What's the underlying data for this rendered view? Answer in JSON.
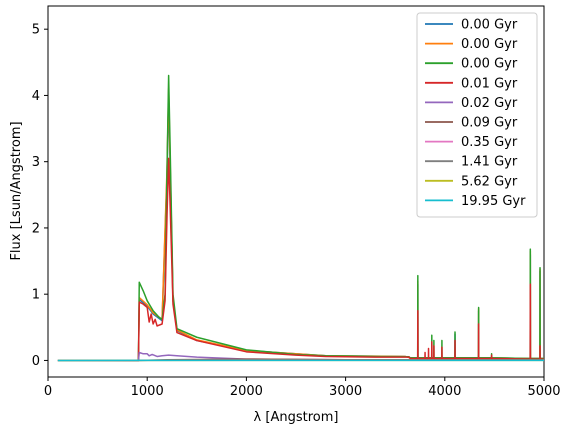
{
  "chart_data": {
    "type": "line",
    "xlabel": "λ [Angstrom]",
    "ylabel": "Flux [Lsun/Angstrom]",
    "xlim": [
      0,
      5000
    ],
    "ylim": [
      -0.25,
      5.35
    ],
    "xticks": [
      0,
      1000,
      2000,
      3000,
      4000,
      5000
    ],
    "yticks": [
      0,
      1,
      2,
      3,
      4,
      5
    ],
    "grid": false,
    "legend_position": "top-right",
    "series": [
      {
        "name": "0.00 Gyr",
        "color": "#1f77b4",
        "points": [
          [
            100,
            0
          ],
          [
            912,
            0
          ],
          [
            920,
            0.92
          ],
          [
            1000,
            0.82
          ],
          [
            1060,
            0.7
          ],
          [
            1150,
            0.6
          ],
          [
            1200,
            2.8
          ],
          [
            1216,
            4.0
          ],
          [
            1230,
            3.0
          ],
          [
            1260,
            0.9
          ],
          [
            1300,
            0.45
          ],
          [
            1500,
            0.3
          ],
          [
            2000,
            0.15
          ],
          [
            2800,
            0.07
          ],
          [
            3600,
            0.06
          ],
          [
            3650,
            0.04
          ],
          [
            3727,
            0.04
          ],
          [
            3728,
            1.15
          ],
          [
            3729,
            0.04
          ],
          [
            4102,
            0.04
          ],
          [
            4103,
            0.4
          ],
          [
            4104,
            0.04
          ],
          [
            4340,
            0.04
          ],
          [
            4341,
            0.75
          ],
          [
            4342,
            0.04
          ],
          [
            4861,
            0.03
          ],
          [
            4862,
            1.6
          ],
          [
            4863,
            0.03
          ],
          [
            4959,
            0.03
          ],
          [
            4960,
            1.35
          ],
          [
            4961,
            0.03
          ],
          [
            5000,
            0.03
          ]
        ]
      },
      {
        "name": "0.00 Gyr",
        "color": "#ff7f0e",
        "points": [
          [
            100,
            0
          ],
          [
            912,
            0
          ],
          [
            920,
            0.95
          ],
          [
            1000,
            0.84
          ],
          [
            1060,
            0.72
          ],
          [
            1150,
            0.62
          ],
          [
            1200,
            2.9
          ],
          [
            1216,
            4.1
          ],
          [
            1230,
            3.1
          ],
          [
            1260,
            0.9
          ],
          [
            1300,
            0.46
          ],
          [
            1500,
            0.31
          ],
          [
            2000,
            0.15
          ],
          [
            2800,
            0.07
          ],
          [
            3600,
            0.06
          ],
          [
            3650,
            0.04
          ],
          [
            3727,
            0.04
          ],
          [
            3728,
            1.2
          ],
          [
            3729,
            0.04
          ],
          [
            4340,
            0.04
          ],
          [
            4341,
            0.78
          ],
          [
            4342,
            0.04
          ],
          [
            4861,
            0.03
          ],
          [
            4862,
            1.65
          ],
          [
            4863,
            0.03
          ],
          [
            4959,
            0.03
          ],
          [
            4960,
            1.38
          ],
          [
            4961,
            0.03
          ],
          [
            5000,
            0.03
          ]
        ]
      },
      {
        "name": "0.00 Gyr",
        "color": "#2ca02c",
        "points": [
          [
            100,
            0
          ],
          [
            912,
            0
          ],
          [
            920,
            1.18
          ],
          [
            960,
            1.05
          ],
          [
            1000,
            0.9
          ],
          [
            1060,
            0.75
          ],
          [
            1120,
            0.65
          ],
          [
            1150,
            0.62
          ],
          [
            1180,
            1.0
          ],
          [
            1200,
            2.9
          ],
          [
            1216,
            4.3
          ],
          [
            1230,
            3.3
          ],
          [
            1260,
            1.0
          ],
          [
            1300,
            0.48
          ],
          [
            1500,
            0.35
          ],
          [
            2000,
            0.16
          ],
          [
            2500,
            0.09
          ],
          [
            2800,
            0.07
          ],
          [
            3300,
            0.06
          ],
          [
            3640,
            0.055
          ],
          [
            3650,
            0.04
          ],
          [
            3727,
            0.04
          ],
          [
            3728,
            1.28
          ],
          [
            3729,
            0.04
          ],
          [
            3868,
            0.04
          ],
          [
            3869,
            0.38
          ],
          [
            3870,
            0.04
          ],
          [
            3889,
            0.04
          ],
          [
            3890,
            0.3
          ],
          [
            3891,
            0.04
          ],
          [
            3970,
            0.04
          ],
          [
            3971,
            0.3
          ],
          [
            3972,
            0.04
          ],
          [
            4102,
            0.04
          ],
          [
            4103,
            0.43
          ],
          [
            4104,
            0.04
          ],
          [
            4340,
            0.04
          ],
          [
            4341,
            0.8
          ],
          [
            4342,
            0.04
          ],
          [
            4471,
            0.04
          ],
          [
            4472,
            0.1
          ],
          [
            4473,
            0.04
          ],
          [
            4861,
            0.03
          ],
          [
            4862,
            1.68
          ],
          [
            4863,
            0.03
          ],
          [
            4959,
            0.03
          ],
          [
            4960,
            1.4
          ],
          [
            4961,
            0.03
          ],
          [
            5000,
            0.03
          ]
        ]
      },
      {
        "name": "0.01 Gyr",
        "color": "#d62728",
        "points": [
          [
            100,
            0
          ],
          [
            912,
            0
          ],
          [
            920,
            0.88
          ],
          [
            960,
            0.85
          ],
          [
            1000,
            0.8
          ],
          [
            1020,
            0.58
          ],
          [
            1040,
            0.7
          ],
          [
            1060,
            0.55
          ],
          [
            1080,
            0.62
          ],
          [
            1100,
            0.52
          ],
          [
            1150,
            0.55
          ],
          [
            1180,
            0.9
          ],
          [
            1200,
            2.2
          ],
          [
            1216,
            3.05
          ],
          [
            1230,
            2.4
          ],
          [
            1260,
            0.85
          ],
          [
            1300,
            0.42
          ],
          [
            1500,
            0.3
          ],
          [
            2000,
            0.13
          ],
          [
            2500,
            0.08
          ],
          [
            2800,
            0.06
          ],
          [
            3300,
            0.05
          ],
          [
            3640,
            0.05
          ],
          [
            3650,
            0.03
          ],
          [
            3727,
            0.03
          ],
          [
            3728,
            0.75
          ],
          [
            3729,
            0.03
          ],
          [
            3800,
            0.03
          ],
          [
            3801,
            0.12
          ],
          [
            3802,
            0.03
          ],
          [
            3835,
            0.03
          ],
          [
            3836,
            0.18
          ],
          [
            3837,
            0.03
          ],
          [
            3868,
            0.03
          ],
          [
            3869,
            0.28
          ],
          [
            3870,
            0.03
          ],
          [
            3889,
            0.03
          ],
          [
            3890,
            0.22
          ],
          [
            3891,
            0.03
          ],
          [
            3970,
            0.03
          ],
          [
            3971,
            0.2
          ],
          [
            3972,
            0.03
          ],
          [
            4102,
            0.03
          ],
          [
            4103,
            0.3
          ],
          [
            4104,
            0.03
          ],
          [
            4340,
            0.03
          ],
          [
            4341,
            0.55
          ],
          [
            4342,
            0.03
          ],
          [
            4471,
            0.03
          ],
          [
            4472,
            0.08
          ],
          [
            4473,
            0.03
          ],
          [
            4861,
            0.02
          ],
          [
            4862,
            1.15
          ],
          [
            4863,
            0.02
          ],
          [
            4959,
            0.02
          ],
          [
            4960,
            0.22
          ],
          [
            4961,
            0.02
          ],
          [
            5000,
            0.02
          ]
        ]
      },
      {
        "name": "0.02 Gyr",
        "color": "#9467bd",
        "points": [
          [
            100,
            0
          ],
          [
            912,
            0
          ],
          [
            920,
            0.12
          ],
          [
            960,
            0.1
          ],
          [
            1000,
            0.1
          ],
          [
            1020,
            0.07
          ],
          [
            1050,
            0.09
          ],
          [
            1100,
            0.06
          ],
          [
            1150,
            0.07
          ],
          [
            1216,
            0.08
          ],
          [
            1300,
            0.07
          ],
          [
            1500,
            0.05
          ],
          [
            2000,
            0.02
          ],
          [
            3000,
            0.01
          ],
          [
            5000,
            0.01
          ]
        ]
      },
      {
        "name": "0.09 Gyr",
        "color": "#8c564b",
        "points": [
          [
            100,
            0
          ],
          [
            912,
            0
          ],
          [
            1200,
            0.01
          ],
          [
            2000,
            0.02
          ],
          [
            3000,
            0.01
          ],
          [
            5000,
            0.01
          ]
        ]
      },
      {
        "name": "0.35 Gyr",
        "color": "#e377c2",
        "points": [
          [
            100,
            0
          ],
          [
            1500,
            0.005
          ],
          [
            3000,
            0.005
          ],
          [
            5000,
            0.005
          ]
        ]
      },
      {
        "name": "1.41 Gyr",
        "color": "#7f7f7f",
        "points": [
          [
            100,
            0
          ],
          [
            2000,
            0.002
          ],
          [
            5000,
            0.002
          ]
        ]
      },
      {
        "name": "5.62 Gyr",
        "color": "#bcbd22",
        "points": [
          [
            100,
            0
          ],
          [
            3000,
            0.001
          ],
          [
            5000,
            0.001
          ]
        ]
      },
      {
        "name": "19.95 Gyr",
        "color": "#17becf",
        "points": [
          [
            100,
            0
          ],
          [
            3000,
            0.001
          ],
          [
            5000,
            0.001
          ]
        ]
      }
    ]
  }
}
